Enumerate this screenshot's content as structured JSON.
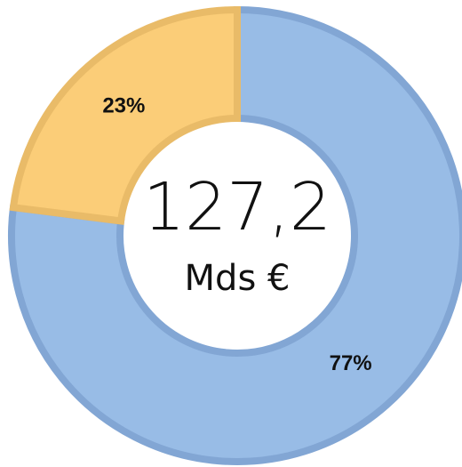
{
  "chart_data": {
    "type": "donut",
    "values": [
      77,
      23
    ],
    "value_labels": [
      "77%",
      "23%"
    ],
    "colors": [
      "#98bce6",
      "#fbcd78"
    ],
    "stroke_colors": [
      "#82a6d4",
      "#e9bb68"
    ],
    "center_value": "127,2",
    "center_unit": "Mds €"
  }
}
